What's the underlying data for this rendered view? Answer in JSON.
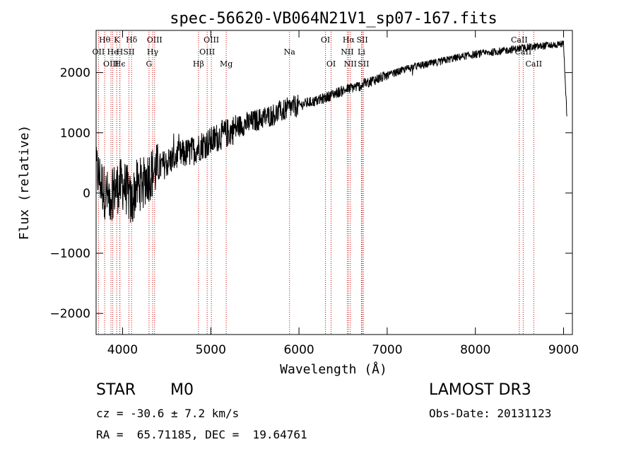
{
  "chart_data": {
    "type": "line",
    "title": "spec-56620-VB064N21V1_sp07-167.fits",
    "xlabel": "Wavelength (Å)",
    "ylabel": "Flux (relative)",
    "xlim": [
      3700,
      9100
    ],
    "ylim": [
      -2350,
      2700
    ],
    "x_ticks": [
      4000,
      5000,
      6000,
      7000,
      8000,
      9000
    ],
    "y_ticks": [
      -2000,
      -1000,
      0,
      1000,
      2000
    ],
    "grid": false,
    "series": [
      {
        "name": "flux",
        "x": [
          3700,
          3750,
          3800,
          3850,
          3900,
          3950,
          4000,
          4050,
          4100,
          4150,
          4200,
          4300,
          4400,
          4500,
          4600,
          4700,
          4800,
          4900,
          5000,
          5100,
          5200,
          5300,
          5400,
          5500,
          5600,
          5700,
          5800,
          5900,
          6000,
          6100,
          6200,
          6300,
          6400,
          6500,
          6600,
          6700,
          6800,
          6900,
          7000,
          7100,
          7200,
          7300,
          7400,
          7500,
          7600,
          7700,
          7800,
          7900,
          8000,
          8100,
          8200,
          8300,
          8400,
          8500,
          8600,
          8700,
          8800,
          8900,
          9000,
          9040
        ],
        "values": [
          400,
          200,
          0,
          -100,
          50,
          100,
          150,
          50,
          -200,
          100,
          150,
          300,
          400,
          500,
          600,
          650,
          700,
          800,
          850,
          950,
          1000,
          1100,
          1150,
          1200,
          1250,
          1300,
          1350,
          1420,
          1450,
          1500,
          1530,
          1580,
          1650,
          1700,
          1750,
          1780,
          1850,
          1900,
          1950,
          2000,
          2050,
          2100,
          2120,
          2150,
          2180,
          2220,
          2250,
          2280,
          2300,
          2320,
          2340,
          2360,
          2380,
          2400,
          2420,
          2430,
          2450,
          2460,
          2480,
          1200
        ]
      }
    ],
    "lines": [
      {
        "label": "Hθ",
        "x": 3797,
        "row": 1
      },
      {
        "label": "OII",
        "x": 3727,
        "row": 2
      },
      {
        "label": "OIII",
        "x": 3869,
        "row": 3
      },
      {
        "label": "He",
        "x": 3889,
        "row": 2
      },
      {
        "label": "K",
        "x": 3934,
        "row": 1
      },
      {
        "label": "Hϵ",
        "x": 3970,
        "row": 3
      },
      {
        "label": "H",
        "x": 3968,
        "row": 2
      },
      {
        "label": "SII",
        "x": 4072,
        "row": 2
      },
      {
        "label": "Hδ",
        "x": 4102,
        "row": 1
      },
      {
        "label": "G",
        "x": 4300,
        "row": 3
      },
      {
        "label": "Hγ",
        "x": 4341,
        "row": 2
      },
      {
        "label": "OIII",
        "x": 4363,
        "row": 1
      },
      {
        "label": "Hβ",
        "x": 4861,
        "row": 3
      },
      {
        "label": "OIII",
        "x": 4959,
        "row": 2
      },
      {
        "label": "OIII",
        "x": 5007,
        "row": 1
      },
      {
        "label": "Mg",
        "x": 5175,
        "row": 3
      },
      {
        "label": "Na",
        "x": 5893,
        "row": 2
      },
      {
        "label": "OI",
        "x": 6300,
        "row": 1
      },
      {
        "label": "OI",
        "x": 6364,
        "row": 3
      },
      {
        "label": "NII",
        "x": 6548,
        "row": 2
      },
      {
        "label": "Hα",
        "x": 6563,
        "row": 1
      },
      {
        "label": "NII",
        "x": 6583,
        "row": 3
      },
      {
        "label": "Li",
        "x": 6708,
        "row": 2
      },
      {
        "label": "SII",
        "x": 6717,
        "row": 1
      },
      {
        "label": "SII",
        "x": 6731,
        "row": 3
      },
      {
        "label": "CaII",
        "x": 8498,
        "row": 1
      },
      {
        "label": "CaII",
        "x": 8542,
        "row": 2
      },
      {
        "label": "CaII",
        "x": 8662,
        "row": 3
      }
    ]
  },
  "info": {
    "object_class": "STAR",
    "subclass": "M0",
    "survey": "LAMOST DR3",
    "redshift": "cz = -30.6 ± 7.2 km/s",
    "obs_date": "Obs-Date: 20131123",
    "coords": "RA =  65.71185, DEC =  19.64761"
  },
  "colors": {
    "line": "#000000",
    "marker": "#cc0000",
    "background": "#ffffff"
  }
}
